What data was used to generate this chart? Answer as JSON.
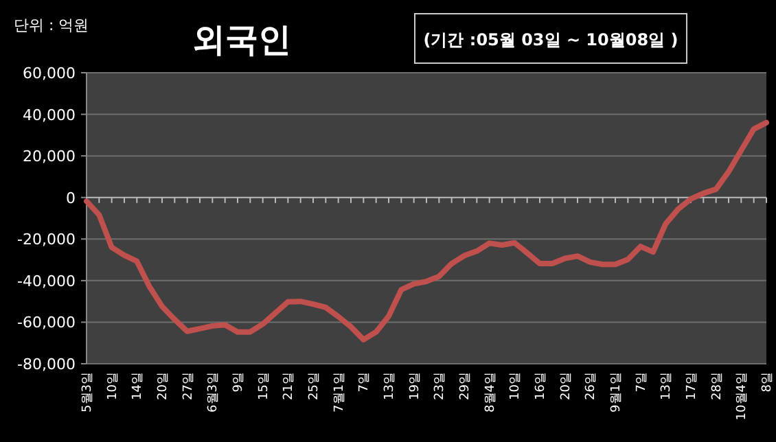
{
  "chart_data": {
    "type": "line",
    "title": "외국인",
    "subtitle": "(기간 :05월 03일 ~ 10월08일 )",
    "ylabel": "단위 : 억원",
    "categories": [
      "5월3일",
      null,
      "10일",
      null,
      "14일",
      null,
      "20일",
      null,
      "27일",
      null,
      "6월3일",
      null,
      "9일",
      null,
      "15일",
      null,
      "21일",
      null,
      "25일",
      null,
      "7월1일",
      null,
      "7일",
      null,
      "13일",
      null,
      "19일",
      null,
      "23일",
      null,
      "29일",
      null,
      "8월4일",
      null,
      "10일",
      null,
      "16일",
      null,
      "20일",
      null,
      "26일",
      null,
      "9월1일",
      null,
      "7일",
      null,
      "13일",
      null,
      "17일",
      null,
      "28일",
      null,
      "10월4일",
      null,
      "8일"
    ],
    "series": [
      {
        "color": "#c0504d",
        "values": [
          -1800,
          -8400,
          -24000,
          -27800,
          -30700,
          -42900,
          -52400,
          -58700,
          -64400,
          -63100,
          -61800,
          -61300,
          -64700,
          -64700,
          -60900,
          -55600,
          -50200,
          -50000,
          -51300,
          -52900,
          -57300,
          -62200,
          -68400,
          -64700,
          -57100,
          -44400,
          -41600,
          -40400,
          -38000,
          -31800,
          -28000,
          -25800,
          -22000,
          -22900,
          -21800,
          -26700,
          -31800,
          -31800,
          -29300,
          -28200,
          -31100,
          -32200,
          -32200,
          -29800,
          -23600,
          -26200,
          -12700,
          -5600,
          -700,
          2000,
          4000,
          12400,
          22700,
          32900,
          36000
        ]
      }
    ],
    "ylim": [
      -80000,
      60000
    ],
    "yticks": [
      {
        "value": -80000,
        "label": "-80,000"
      },
      {
        "value": -60000,
        "label": "-60,000"
      },
      {
        "value": -40000,
        "label": "-40,000"
      },
      {
        "value": -20000,
        "label": "-20,000"
      },
      0,
      {
        "value": 20000,
        "label": "20,000"
      },
      {
        "value": 40000,
        "label": "40,000"
      },
      {
        "value": 60000,
        "label": "60,000"
      }
    ],
    "grid": "y",
    "marker": "none",
    "line_style": "solid"
  }
}
